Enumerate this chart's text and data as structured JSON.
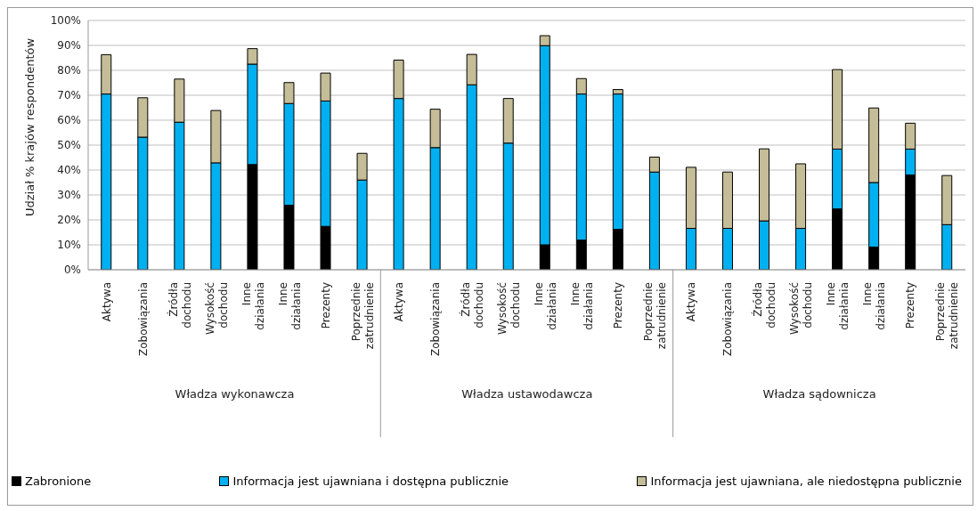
{
  "chart_data": {
    "type": "bar",
    "stacked": true,
    "ylabel": "Udział % krajów respondentów",
    "categories": [
      "Aktywa",
      "Zobowiązania",
      "Źródła dochodu",
      "Wysokość dochodu",
      "Inne działania",
      "Inne działania",
      "Prezenty",
      "Poprzednie zatrudnienie",
      "Aktywa",
      "Zobowiązania",
      "Źródła dochodu",
      "Wysokość dochodu",
      "Inne działania",
      "Inne działania",
      "Prezenty",
      "Poprzednie zatrudnienie",
      "Aktywa",
      "Zobowiązania",
      "Źródła dochodu",
      "Wysokość dochodu",
      "Inne działania",
      "Inne działania",
      "Prezenty",
      "Poprzednie zatrudnienie"
    ],
    "series": [
      {
        "name": "Zabronione",
        "color": "#000000",
        "values": [
          0,
          0,
          0,
          0,
          42.2,
          25.9,
          17.4,
          0,
          0,
          0,
          0,
          0,
          10.0,
          11.9,
          16.2,
          0,
          0,
          0,
          0,
          0,
          24.4,
          9.1,
          38.0,
          0
        ]
      },
      {
        "name": "Informacja jest ujawniana i dostępna publicznie",
        "color": "#00b0f0",
        "values": [
          70.5,
          53.2,
          59.2,
          42.9,
          40.3,
          40.8,
          50.3,
          36.0,
          68.7,
          49.0,
          74.2,
          50.8,
          79.9,
          58.6,
          54.3,
          39.2,
          16.6,
          16.6,
          19.6,
          16.6,
          24.0,
          25.9,
          10.4,
          18.1
        ]
      },
      {
        "name": "Informacja jest ujawniana, ale niedostępna publicznie",
        "color": "#c4bd97",
        "values": [
          15.8,
          15.8,
          17.3,
          21.0,
          6.2,
          8.4,
          11.2,
          10.7,
          15.4,
          15.4,
          12.2,
          17.9,
          4.0,
          6.2,
          1.8,
          6.0,
          24.5,
          22.6,
          28.9,
          25.9,
          31.9,
          29.9,
          10.4,
          19.7
        ]
      }
    ],
    "ylim": [
      0,
      100
    ],
    "yticks": [
      {
        "value": 0,
        "label": "0%"
      },
      {
        "value": 10,
        "label": "10%"
      },
      {
        "value": 20,
        "label": "20%"
      },
      {
        "value": 30,
        "label": "30%"
      },
      {
        "value": 40,
        "label": "40%"
      },
      {
        "value": 50,
        "label": "50%"
      },
      {
        "value": 60,
        "label": "60%"
      },
      {
        "value": 70,
        "label": "70%"
      },
      {
        "value": 80,
        "label": "80%"
      },
      {
        "value": 90,
        "label": "90%"
      },
      {
        "value": 100,
        "label": "100%"
      }
    ],
    "grid": "y",
    "legend": "bottom",
    "annotations": [
      "Władza wykonawcza",
      "Władza ustawodawcza",
      "Władza sądownicza"
    ]
  }
}
